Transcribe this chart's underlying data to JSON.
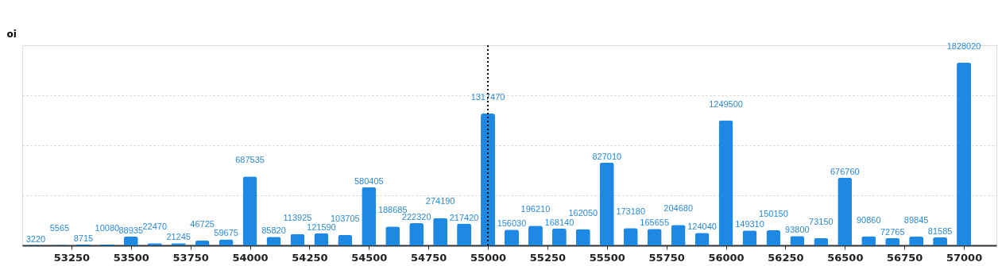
{
  "chart_data": {
    "type": "bar",
    "ylabel": "oi",
    "x": [
      53100,
      53200,
      53300,
      53400,
      53500,
      53600,
      53700,
      53800,
      53900,
      54000,
      54100,
      54200,
      54300,
      54400,
      54500,
      54600,
      54700,
      54800,
      54900,
      55000,
      55100,
      55200,
      55300,
      55400,
      55500,
      55600,
      55700,
      55800,
      55900,
      56000,
      56100,
      56200,
      56300,
      56400,
      56500,
      56600,
      56700,
      56800,
      56900,
      57000
    ],
    "values": [
      3220,
      5565,
      8715,
      10080,
      88935,
      22470,
      21245,
      46725,
      59675,
      687535,
      85820,
      113925,
      121590,
      103705,
      580405,
      188685,
      222320,
      274190,
      217420,
      1317470,
      156030,
      196210,
      168140,
      162050,
      827010,
      173180,
      165655,
      204680,
      124040,
      1249500,
      149310,
      150150,
      93800,
      73150,
      676760,
      90860,
      72765,
      89845,
      81585,
      1828020
    ],
    "color": "#1e88e5",
    "data_labels": true,
    "xlim": [
      53060,
      57120
    ],
    "xticks": [
      53250,
      53500,
      53750,
      54000,
      54250,
      54500,
      54750,
      55000,
      55250,
      55500,
      55750,
      56000,
      56250,
      56500,
      56750,
      57000
    ],
    "ylim": [
      0,
      2000000
    ],
    "yticks": [
      {
        "value": 500000,
        "label": null
      },
      {
        "value": 1000000,
        "label": null
      },
      {
        "value": 1500000,
        "label": null
      }
    ],
    "grid": "y",
    "tick_labels": "x",
    "ref_lines": [
      {
        "axis": "x",
        "value": 55000,
        "label": null,
        "color": "#000000",
        "line_style": "dotted"
      }
    ]
  }
}
